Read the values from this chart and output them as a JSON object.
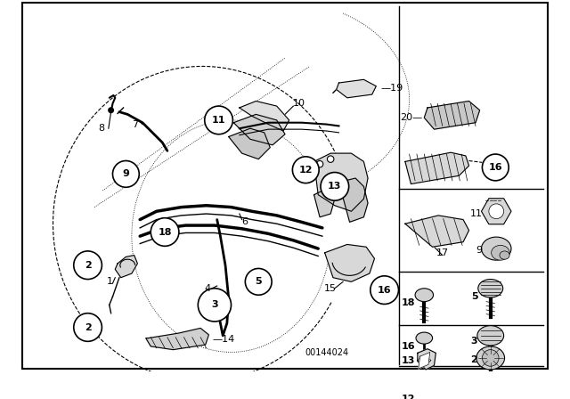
{
  "bg_color": "#ffffff",
  "border_color": "#000000",
  "diagram_number": "00144024",
  "lc": "#000000",
  "tc": "#000000"
}
